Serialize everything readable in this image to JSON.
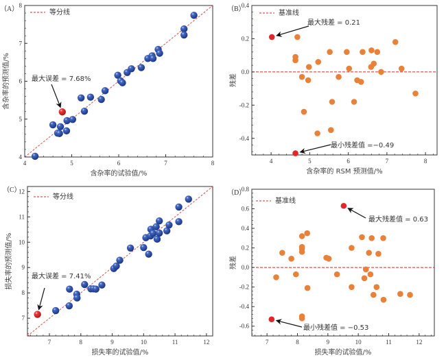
{
  "chart_data": [
    {
      "id": "A",
      "type": "scatter",
      "panel_label": "（A）",
      "xlabel": "含杂率的试验值/%",
      "ylabel": "含杂率的预测值/%",
      "xlim": [
        4,
        8
      ],
      "ylim": [
        4,
        8
      ],
      "xticks": [
        4,
        5,
        6,
        7,
        8
      ],
      "yticks": [
        4,
        5,
        6,
        7,
        8
      ],
      "legend": {
        "label": "等分线",
        "position": "top-left",
        "style": "dashed"
      },
      "reference_line": {
        "type": "diagonal",
        "label": "等分线"
      },
      "marker": "sphere",
      "point_color": "#2b4fa8",
      "highlight_color": "#e0282a",
      "points": [
        {
          "x": 4.22,
          "y": 4.02
        },
        {
          "x": 4.6,
          "y": 4.85
        },
        {
          "x": 4.7,
          "y": 4.63
        },
        {
          "x": 4.74,
          "y": 4.62
        },
        {
          "x": 4.76,
          "y": 4.8
        },
        {
          "x": 4.89,
          "y": 4.69
        },
        {
          "x": 4.9,
          "y": 4.96
        },
        {
          "x": 5.02,
          "y": 4.99
        },
        {
          "x": 5.2,
          "y": 5.56
        },
        {
          "x": 5.27,
          "y": 5.21
        },
        {
          "x": 5.4,
          "y": 5.58
        },
        {
          "x": 5.63,
          "y": 5.52
        },
        {
          "x": 5.71,
          "y": 5.75
        },
        {
          "x": 5.98,
          "y": 6.16
        },
        {
          "x": 6.04,
          "y": 6.01
        },
        {
          "x": 6.08,
          "y": 5.96
        },
        {
          "x": 6.18,
          "y": 6.23
        },
        {
          "x": 6.27,
          "y": 6.33
        },
        {
          "x": 6.48,
          "y": 6.36
        },
        {
          "x": 6.62,
          "y": 6.6
        },
        {
          "x": 6.71,
          "y": 6.67
        },
        {
          "x": 6.73,
          "y": 6.6
        },
        {
          "x": 6.84,
          "y": 6.84
        },
        {
          "x": 6.87,
          "y": 6.74
        },
        {
          "x": 7.39,
          "y": 7.38
        },
        {
          "x": 7.39,
          "y": 7.22
        },
        {
          "x": 7.6,
          "y": 7.74
        }
      ],
      "highlight_points": [
        {
          "x": 4.8,
          "y": 5.19
        }
      ],
      "annotations": [
        {
          "text": "最大误差 = 7.68%",
          "target": {
            "x": 4.8,
            "y": 5.19
          }
        }
      ]
    },
    {
      "id": "B",
      "type": "scatter",
      "panel_label": "（B）",
      "xlabel": "含杂率的 RSM 预测值/%",
      "ylabel": "残差",
      "xlim": [
        3.5,
        8.3
      ],
      "ylim": [
        -0.5,
        0.4
      ],
      "xticks": [
        4,
        5,
        6,
        7,
        8
      ],
      "yticks": [
        -0.4,
        -0.2,
        0.0,
        0.2,
        0.4
      ],
      "ytick_labels": [
        "-0.4",
        "-0.2",
        "0.0",
        "0.2",
        "0.4"
      ],
      "legend": {
        "label": "基准线",
        "position": "top-left",
        "style": "dashed"
      },
      "reference_line": {
        "type": "horizontal",
        "y": 0,
        "label": "基准线"
      },
      "marker": "circle",
      "point_color": "#e8823a",
      "highlight_color": "#e0282a",
      "points": [
        {
          "x": 4.68,
          "y": 0.21
        },
        {
          "x": 4.63,
          "y": 0.09
        },
        {
          "x": 4.63,
          "y": 0.07
        },
        {
          "x": 4.8,
          "y": -0.03
        },
        {
          "x": 4.85,
          "y": -0.24
        },
        {
          "x": 4.96,
          "y": -0.05
        },
        {
          "x": 4.98,
          "y": 0.03
        },
        {
          "x": 5.2,
          "y": -0.37
        },
        {
          "x": 5.22,
          "y": 0.06
        },
        {
          "x": 5.52,
          "y": 0.12
        },
        {
          "x": 5.55,
          "y": -0.35
        },
        {
          "x": 5.58,
          "y": -0.18
        },
        {
          "x": 5.75,
          "y": -0.03
        },
        {
          "x": 5.96,
          "y": 0.12
        },
        {
          "x": 6.02,
          "y": 0.02
        },
        {
          "x": 6.15,
          "y": -0.18
        },
        {
          "x": 6.23,
          "y": -0.05
        },
        {
          "x": 6.33,
          "y": -0.06
        },
        {
          "x": 6.37,
          "y": 0.12
        },
        {
          "x": 6.59,
          "y": 0.03
        },
        {
          "x": 6.6,
          "y": 0.13
        },
        {
          "x": 6.66,
          "y": 0.05
        },
        {
          "x": 6.75,
          "y": 0.12
        },
        {
          "x": 6.85,
          "y": 0.0
        },
        {
          "x": 7.22,
          "y": 0.18
        },
        {
          "x": 7.38,
          "y": 0.02
        },
        {
          "x": 7.74,
          "y": -0.13
        }
      ],
      "highlight_points": [
        {
          "x": 4.02,
          "y": 0.21
        },
        {
          "x": 4.63,
          "y": -0.49
        }
      ],
      "annotations": [
        {
          "text": "最大残差 = 0.21",
          "target": {
            "x": 4.02,
            "y": 0.21
          }
        },
        {
          "text": "最小残差值 =−0.49",
          "target": {
            "x": 4.63,
            "y": -0.49
          }
        }
      ]
    },
    {
      "id": "C",
      "type": "scatter",
      "panel_label": "（C）",
      "xlabel": "损失率的试验值/%",
      "ylabel": "损失率的预测值/%",
      "xlim": [
        6.3,
        12.2
      ],
      "ylim": [
        6.3,
        12.2
      ],
      "xticks": [
        7,
        8,
        9,
        10,
        11,
        12
      ],
      "yticks": [
        7,
        8,
        9,
        10,
        11,
        12
      ],
      "legend": {
        "label": "等分线",
        "position": "top-left",
        "style": "dashed"
      },
      "reference_line": {
        "type": "diagonal",
        "label": "等分线"
      },
      "marker": "sphere",
      "point_color": "#2b4fa8",
      "highlight_color": "#e0282a",
      "points": [
        {
          "x": 7.2,
          "y": 7.3
        },
        {
          "x": 7.63,
          "y": 7.49
        },
        {
          "x": 7.64,
          "y": 8.15
        },
        {
          "x": 7.87,
          "y": 7.95
        },
        {
          "x": 7.88,
          "y": 7.8
        },
        {
          "x": 8.12,
          "y": 8.33
        },
        {
          "x": 8.32,
          "y": 8.16
        },
        {
          "x": 8.4,
          "y": 8.16
        },
        {
          "x": 8.48,
          "y": 8.15
        },
        {
          "x": 8.67,
          "y": 8.31
        },
        {
          "x": 9.05,
          "y": 8.96
        },
        {
          "x": 9.13,
          "y": 9.06
        },
        {
          "x": 9.24,
          "y": 9.29
        },
        {
          "x": 9.58,
          "y": 9.77
        },
        {
          "x": 10.0,
          "y": 9.79
        },
        {
          "x": 10.07,
          "y": 10.18
        },
        {
          "x": 10.16,
          "y": 9.53
        },
        {
          "x": 10.22,
          "y": 10.25
        },
        {
          "x": 10.23,
          "y": 10.51
        },
        {
          "x": 10.3,
          "y": 10.35
        },
        {
          "x": 10.4,
          "y": 10.61
        },
        {
          "x": 10.43,
          "y": 10.12
        },
        {
          "x": 10.5,
          "y": 10.36
        },
        {
          "x": 10.5,
          "y": 10.84
        },
        {
          "x": 10.74,
          "y": 10.45
        },
        {
          "x": 10.81,
          "y": 10.68
        },
        {
          "x": 11.12,
          "y": 11.39
        },
        {
          "x": 11.12,
          "y": 10.81
        },
        {
          "x": 11.43,
          "y": 11.7
        }
      ],
      "highlight_points": [
        {
          "x": 6.62,
          "y": 7.15
        }
      ],
      "annotations": [
        {
          "text": "最大误差  =  7.41%",
          "target": {
            "x": 6.62,
            "y": 7.15
          }
        }
      ]
    },
    {
      "id": "D",
      "type": "scatter",
      "panel_label": "（D）",
      "xlabel": "损失率的试验值/%",
      "ylabel": "残差",
      "xlim": [
        6.5,
        12.5
      ],
      "ylim": [
        -0.7,
        0.8
      ],
      "xticks": [
        7,
        8,
        9,
        10,
        11,
        12
      ],
      "yticks": [
        -0.6,
        -0.4,
        -0.2,
        0.0,
        0.2,
        0.4,
        0.6,
        0.8
      ],
      "ytick_labels": [
        "-0.6",
        "-0.4",
        "-0.2",
        "0.0",
        "0.2",
        "0.4",
        "0.6",
        "0.8"
      ],
      "legend": {
        "label": "基准线",
        "position": "top-left",
        "style": "dashed"
      },
      "reference_line": {
        "type": "horizontal",
        "y": 0,
        "label": "基准线"
      },
      "marker": "circle",
      "point_color": "#e8823a",
      "highlight_color": "#e0282a",
      "points": [
        {
          "x": 7.3,
          "y": -0.1
        },
        {
          "x": 7.5,
          "y": 0.15
        },
        {
          "x": 7.8,
          "y": 0.09
        },
        {
          "x": 7.95,
          "y": -0.07
        },
        {
          "x": 8.15,
          "y": 0.32
        },
        {
          "x": 8.15,
          "y": 0.21
        },
        {
          "x": 8.15,
          "y": 0.19
        },
        {
          "x": 8.15,
          "y": 0.16
        },
        {
          "x": 8.15,
          "y": -0.5
        },
        {
          "x": 8.15,
          "y": -0.52
        },
        {
          "x": 8.32,
          "y": 0.35
        },
        {
          "x": 8.33,
          "y": -0.21
        },
        {
          "x": 8.95,
          "y": 0.1
        },
        {
          "x": 9.03,
          "y": 0.09
        },
        {
          "x": 9.3,
          "y": -0.07
        },
        {
          "x": 9.78,
          "y": 0.2
        },
        {
          "x": 9.78,
          "y": -0.2
        },
        {
          "x": 10.12,
          "y": 0.31
        },
        {
          "x": 10.2,
          "y": -0.11
        },
        {
          "x": 10.25,
          "y": -0.02
        },
        {
          "x": 10.35,
          "y": 0.15
        },
        {
          "x": 10.4,
          "y": -0.07
        },
        {
          "x": 10.44,
          "y": 0.3
        },
        {
          "x": 10.5,
          "y": -0.28
        },
        {
          "x": 10.6,
          "y": -0.2
        },
        {
          "x": 10.66,
          "y": 0.14
        },
        {
          "x": 10.82,
          "y": 0.3
        },
        {
          "x": 10.83,
          "y": -0.33
        },
        {
          "x": 11.38,
          "y": -0.27
        },
        {
          "x": 11.7,
          "y": -0.28
        }
      ],
      "highlight_points": [
        {
          "x": 9.52,
          "y": 0.63
        },
        {
          "x": 7.15,
          "y": -0.53
        }
      ],
      "annotations": [
        {
          "text": "最大残差值  = 0.63",
          "target": {
            "x": 9.52,
            "y": 0.63
          }
        },
        {
          "text": "最小残差值  = −0.53",
          "target": {
            "x": 7.15,
            "y": -0.53
          }
        }
      ]
    }
  ]
}
